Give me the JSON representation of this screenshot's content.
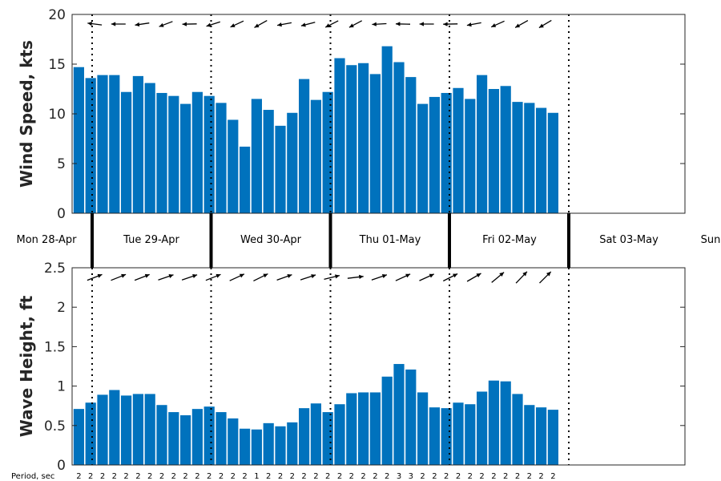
{
  "chart_data": [
    {
      "type": "bar",
      "ylabel": "Wind Speed, kts",
      "ylim": [
        0,
        20
      ],
      "yticks": [
        "0",
        "5",
        "10",
        "15",
        "20"
      ],
      "color": "#0072BD",
      "values": [
        14.7,
        13.6,
        13.9,
        13.9,
        12.2,
        13.8,
        13.1,
        12.1,
        11.8,
        11.0,
        12.2,
        11.8,
        11.1,
        9.4,
        6.7,
        11.5,
        10.4,
        8.8,
        10.1,
        13.5,
        11.4,
        12.2,
        15.6,
        14.9,
        15.1,
        14.0,
        16.8,
        15.2,
        13.7,
        11.0,
        11.7,
        12.1,
        12.6,
        11.5,
        13.9,
        12.5,
        12.8,
        11.2,
        11.1,
        10.6,
        10.1
      ],
      "direction_deg": [
        97,
        97,
        93,
        90,
        80,
        82,
        70,
        69,
        80,
        89,
        80,
        72,
        64,
        65,
        61,
        61,
        72,
        80,
        80,
        75,
        77,
        63,
        62,
        62,
        81,
        87,
        92,
        91,
        93,
        90,
        93,
        89,
        86,
        80,
        73,
        66,
        65,
        61,
        64,
        59,
        63
      ]
    },
    {
      "type": "bar",
      "ylabel": "Wave Height, ft",
      "ylim": [
        0,
        2.5
      ],
      "yticks": [
        "0",
        "0.5",
        "1",
        "1.5",
        "2",
        "2.5"
      ],
      "color": "#0072BD",
      "values": [
        0.71,
        0.79,
        0.89,
        0.95,
        0.88,
        0.9,
        0.9,
        0.76,
        0.67,
        0.63,
        0.71,
        0.74,
        0.67,
        0.59,
        0.46,
        0.45,
        0.53,
        0.49,
        0.54,
        0.72,
        0.78,
        0.67,
        0.77,
        0.91,
        0.92,
        0.92,
        1.12,
        1.28,
        1.21,
        0.92,
        0.73,
        0.72,
        0.79,
        0.77,
        0.93,
        1.07,
        1.06,
        0.9,
        0.76,
        0.73,
        0.7
      ],
      "direction_deg": [
        74,
        69,
        70,
        68,
        72,
        69,
        71,
        71,
        70,
        71,
        70,
        68,
        63,
        65,
        66,
        64,
        65,
        70,
        73,
        72,
        74,
        76,
        79,
        83,
        76,
        71,
        69,
        65,
        63,
        66,
        63,
        63,
        63,
        60,
        57,
        50,
        45,
        44,
        44,
        45,
        46
      ],
      "periods": [
        "2",
        "2",
        "2",
        "2",
        "2",
        "2",
        "2",
        "2",
        "2",
        "2",
        "2",
        "2",
        "2",
        "2",
        "2",
        "1",
        "2",
        "2",
        "2",
        "2",
        "2",
        "2",
        "2",
        "2",
        "2",
        "2",
        "2",
        "3",
        "3",
        "2",
        "2",
        "2",
        "2",
        "2",
        "2",
        "2",
        "2",
        "2",
        "2",
        "2",
        "2"
      ],
      "period_label": "Period, sec"
    }
  ],
  "days": [
    "Mon 28-Apr",
    "Tue 29-Apr",
    "Wed 30-Apr",
    "Thu 01-May",
    "Fri 02-May",
    "Sat 03-May",
    "Sun"
  ]
}
